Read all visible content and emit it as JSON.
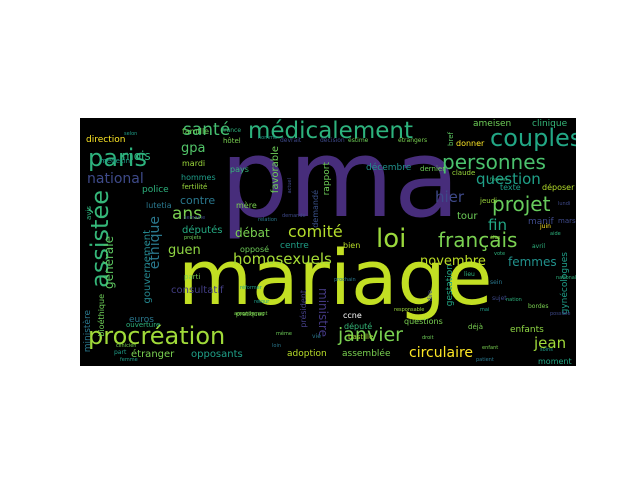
{
  "wordcloud": {
    "background": "#000000",
    "words": [
      {
        "text": "pma",
        "color": "#472d7b"
      },
      {
        "text": "mariage",
        "color": "#c2df23"
      },
      {
        "text": "procréation",
        "color": "#a0da39"
      },
      {
        "text": "médicalement",
        "color": "#2db27d"
      },
      {
        "text": "assistée",
        "color": "#35b779"
      },
      {
        "text": "paris",
        "color": "#2db27d"
      },
      {
        "text": "loi",
        "color": "#9bd93c"
      },
      {
        "text": "couples",
        "color": "#22a785"
      },
      {
        "text": "personnes",
        "color": "#4ac16d"
      },
      {
        "text": "projet",
        "color": "#67cc5c"
      },
      {
        "text": "français",
        "color": "#7ad151"
      },
      {
        "text": "janvier",
        "color": "#7ad151"
      },
      {
        "text": "homosexuels",
        "color": "#a5db36"
      },
      {
        "text": "comité",
        "color": "#b5de2b"
      },
      {
        "text": "santé",
        "color": "#45bf70"
      },
      {
        "text": "ans",
        "color": "#7ad151"
      },
      {
        "text": "question",
        "color": "#1fa088"
      },
      {
        "text": "favorable",
        "color": "#6ece58"
      },
      {
        "text": "hier",
        "color": "#3e4989"
      },
      {
        "text": "national",
        "color": "#3e4a89"
      },
      {
        "text": "novembre",
        "color": "#bddf26"
      },
      {
        "text": "circulaire",
        "color": "#fde725"
      },
      {
        "text": "jean",
        "color": "#a0da39"
      },
      {
        "text": "fin",
        "color": "#22a785"
      },
      {
        "text": "femmes",
        "color": "#21918c"
      },
      {
        "text": "éthique",
        "color": "#2a788e"
      },
      {
        "text": "générale",
        "color": "#5ec962"
      },
      {
        "text": "ministre",
        "color": "#443983"
      },
      {
        "text": "débat",
        "color": "#7ad151"
      },
      {
        "text": "guen",
        "color": "#90d743"
      },
      {
        "text": "gpa",
        "color": "#52c569"
      },
      {
        "text": "mois",
        "color": "#2db27d"
      },
      {
        "text": "contre",
        "color": "#2a788e"
      },
      {
        "text": "gouvernement",
        "color": "#24868e"
      },
      {
        "text": "consultatif",
        "color": "#433e85"
      },
      {
        "text": "opposants",
        "color": "#1fa088"
      },
      {
        "text": "adoption",
        "color": "#b8de29"
      },
      {
        "text": "assemblée",
        "color": "#7ad151"
      },
      {
        "text": "décembre",
        "color": "#21918c"
      },
      {
        "text": "rapport",
        "color": "#6ece58"
      },
      {
        "text": "manif",
        "color": "#3e4989"
      },
      {
        "text": "tour",
        "color": "#6ece58"
      },
      {
        "text": "gestation",
        "color": "#22a785"
      },
      {
        "text": "gynécologues",
        "color": "#1f9e89"
      },
      {
        "text": "enfants",
        "color": "#8fd744"
      },
      {
        "text": "ministère",
        "color": "#2a788e"
      },
      {
        "text": "bioéthique",
        "color": "#6ece58"
      },
      {
        "text": "députés",
        "color": "#25ab82"
      },
      {
        "text": "euros",
        "color": "#2a788e"
      },
      {
        "text": "étranger",
        "color": "#7ad151"
      },
      {
        "text": "président",
        "color": "#433e85"
      },
      {
        "text": "député",
        "color": "#35b779"
      },
      {
        "text": "ccne",
        "color": "#ffffff"
      },
      {
        "text": "police",
        "color": "#2db27d"
      },
      {
        "text": "direction",
        "color": "#fde725"
      },
      {
        "text": "mardi",
        "color": "#9bd93c"
      },
      {
        "text": "hommes",
        "color": "#1f9e89"
      },
      {
        "text": "ameisen",
        "color": "#6ece58"
      },
      {
        "text": "clinique",
        "color": "#35b779"
      },
      {
        "text": "texte",
        "color": "#1f9e89"
      },
      {
        "text": "déposer",
        "color": "#b5de2b"
      },
      {
        "text": "mère",
        "color": "#7ad151"
      },
      {
        "text": "centre",
        "color": "#1fa088"
      },
      {
        "text": "bien",
        "color": "#b8de29"
      },
      {
        "text": "questions",
        "color": "#7ad151"
      },
      {
        "text": "demandé",
        "color": "#3b528b"
      },
      {
        "text": "opposé",
        "color": "#6ece58"
      },
      {
        "text": "lutetia",
        "color": "#2a788e"
      },
      {
        "text": "famille",
        "color": "#6ece58"
      },
      {
        "text": "claude",
        "color": "#9bd93c"
      },
      {
        "text": "pays",
        "color": "#35b779"
      },
      {
        "text": "fertilité",
        "color": "#9bd93c"
      },
      {
        "text": "moment",
        "color": "#22a785"
      },
      {
        "text": "bastille",
        "color": "#a5db36"
      },
      {
        "text": "dernier",
        "color": "#6ece58"
      },
      {
        "text": "médecin",
        "color": "#1f9e89"
      },
      {
        "text": "jeudi",
        "color": "#9bd93c"
      },
      {
        "text": "mars",
        "color": "#3e4989"
      },
      {
        "text": "donner",
        "color": "#fde725"
      },
      {
        "text": "bref",
        "color": "#5ec962"
      },
      {
        "text": "hôtel",
        "color": "#7ad151"
      },
      {
        "text": "devrait",
        "color": "#3e4989"
      },
      {
        "text": "décision",
        "color": "#3e4989"
      },
      {
        "text": "estime",
        "color": "#6ece58"
      },
      {
        "text": "déjà",
        "color": "#7ad151"
      },
      {
        "text": "part",
        "color": "#1f9e89"
      },
      {
        "text": "vie",
        "color": "#2a788e"
      },
      {
        "text": "avis",
        "color": "#2db27d"
      },
      {
        "text": "france",
        "color": "#2db27d"
      },
      {
        "text": "selon",
        "color": "#1f9e89"
      },
      {
        "text": "parti",
        "color": "#7ad151"
      },
      {
        "text": "femme",
        "color": "#1f9e89"
      },
      {
        "text": "projets",
        "color": "#6ece58"
      },
      {
        "text": "semaine",
        "color": "#3e4989"
      },
      {
        "text": "ouverture",
        "color": "#2db27d"
      },
      {
        "text": "pratiques",
        "color": "#7ad151"
      },
      {
        "text": "enfant",
        "color": "#7ad151"
      },
      {
        "text": "loin",
        "color": "#2a788e"
      },
      {
        "text": "dire",
        "color": "#3e4989"
      },
      {
        "text": "sein",
        "color": "#2a788e"
      },
      {
        "text": "lieu",
        "color": "#2db27d"
      },
      {
        "text": "responsable",
        "color": "#9bd93c"
      },
      {
        "text": "juin",
        "color": "#fde725"
      },
      {
        "text": "avril",
        "color": "#2db27d"
      },
      {
        "text": "bordes",
        "color": "#7ad151"
      },
      {
        "text": "sujet",
        "color": "#3e4989"
      },
      {
        "text": "mai",
        "color": "#1f9e89"
      },
      {
        "text": "amendement",
        "color": "#7ad151"
      },
      {
        "text": "étrangers",
        "color": "#7ad151"
      },
      {
        "text": "vote",
        "color": "#2db27d"
      },
      {
        "text": "droit",
        "color": "#6ece58"
      },
      {
        "text": "lundi",
        "color": "#3e4989"
      },
      {
        "text": "fourest",
        "color": "#2db27d"
      },
      {
        "text": "élus",
        "color": "#9bd93c"
      },
      {
        "text": "nationale",
        "color": "#2db27d"
      },
      {
        "text": "homme",
        "color": "#1f9e89"
      },
      {
        "text": "relation",
        "color": "#2a788e"
      },
      {
        "text": "demande",
        "color": "#3e4989"
      },
      {
        "text": "actuel",
        "color": "#3e4989"
      },
      {
        "text": "réformer",
        "color": "#1f9e89"
      },
      {
        "text": "retour",
        "color": "#1f9e89"
      },
      {
        "text": "prochain",
        "color": "#2a788e"
      },
      {
        "text": "aide",
        "color": "#2db27d"
      },
      {
        "text": "possible",
        "color": "#3e4989"
      },
      {
        "text": "nation",
        "color": "#2db27d"
      },
      {
        "text": "clinicien",
        "color": "#7ad151"
      },
      {
        "text": "patient",
        "color": "#2a788e"
      },
      {
        "text": "soins",
        "color": "#1f9e89"
      },
      {
        "text": "même",
        "color": "#6ece58"
      }
    ]
  }
}
